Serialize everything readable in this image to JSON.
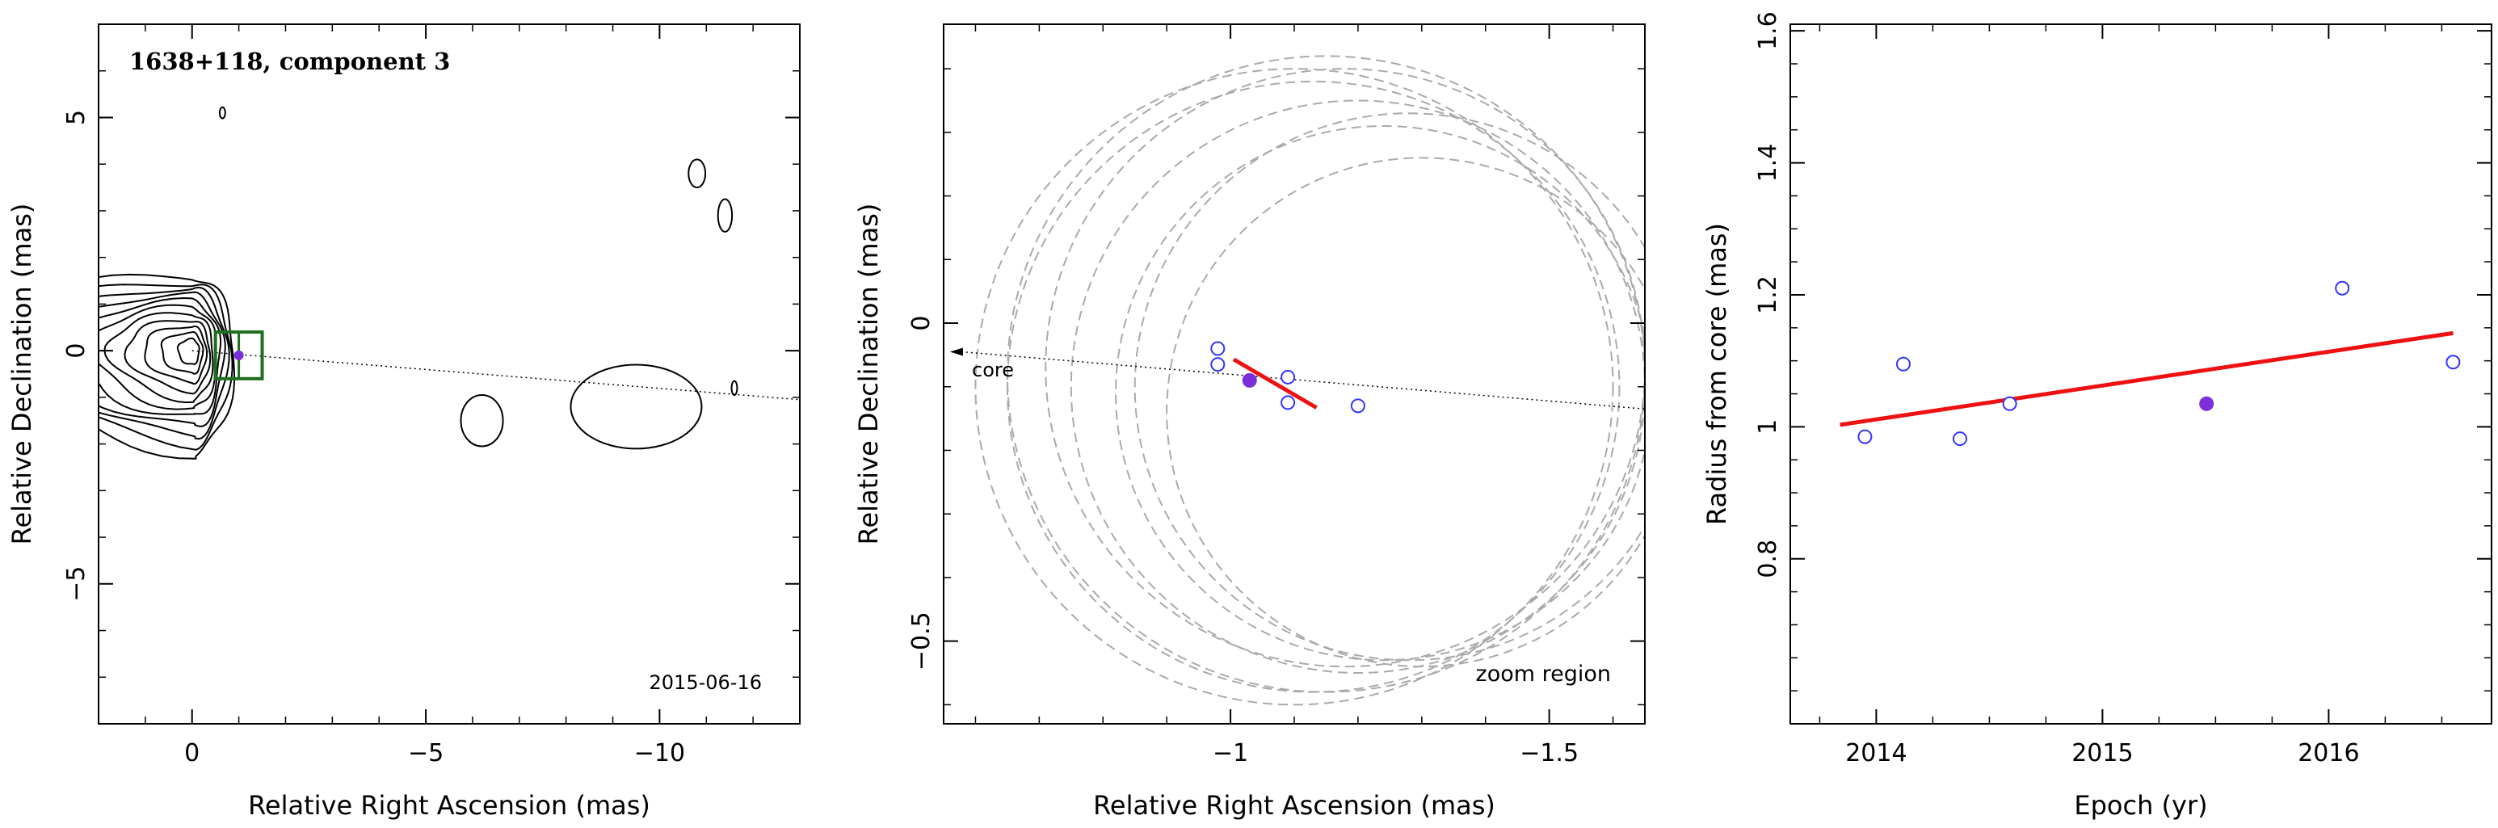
{
  "chart_data": [
    {
      "type": "contour",
      "panel": "vlba-map",
      "annotation_title": "1638+118, component 3",
      "annotation_date": "2015-06-16",
      "xlabel": "Relative Right Ascension (mas)",
      "ylabel": "Relative Declination (mas)",
      "xlim": [
        2,
        -13
      ],
      "ylim": [
        -8,
        7
      ],
      "x_ticks": [
        0,
        -5,
        -10
      ],
      "x_tick_labels": [
        "0",
        "−5",
        "−10"
      ],
      "y_ticks": [
        5,
        0,
        -5
      ],
      "y_tick_labels": [
        "5",
        "0",
        "−5"
      ],
      "component": {
        "x": -1.0,
        "y": -0.1,
        "box_half_size": 0.5
      },
      "jet_axis": {
        "from": [
          0,
          0
        ],
        "to": [
          -13,
          -1.05
        ]
      },
      "contour_levels": 11,
      "colors": {
        "contour": "#000000",
        "box": "#1f6e1f",
        "marker": "#7b2fd8"
      }
    },
    {
      "type": "scatter",
      "panel": "zoom-region",
      "annotation": "zoom region",
      "core_label": "core",
      "xlabel": "Relative Right Ascension (mas)",
      "ylabel": "Relative Declination (mas)",
      "xlim": [
        -0.55,
        -1.65
      ],
      "ylim": [
        -0.63,
        0.47
      ],
      "x_ticks": [
        -1,
        -1.5
      ],
      "x_tick_labels": [
        "−1",
        "−1.5"
      ],
      "y_ticks": [
        0,
        -0.5
      ],
      "y_tick_labels": [
        "0",
        "−0.5"
      ],
      "series": [
        {
          "marker": "open",
          "points": [
            [
              -0.98,
              -0.04
            ],
            [
              -0.98,
              -0.065
            ],
            [
              -1.09,
              -0.085
            ],
            [
              -1.09,
              -0.125
            ],
            [
              -1.2,
              -0.13
            ]
          ]
        },
        {
          "marker": "filled",
          "points": [
            [
              -1.03,
              -0.09
            ]
          ]
        }
      ],
      "fit_line": [
        [
          -1.005,
          -0.057
        ],
        [
          -1.135,
          -0.133
        ]
      ],
      "jet_axis": {
        "from": [
          -0.56,
          -0.045
        ],
        "to": [
          -1.65,
          -0.135
        ]
      },
      "beam_circles": [
        {
          "cx": -1.1,
          "cy": -0.1,
          "r": 0.5
        },
        {
          "cx": -1.13,
          "cy": -0.1,
          "r": 0.48
        },
        {
          "cx": -1.15,
          "cy": -0.08,
          "r": 0.5
        },
        {
          "cx": -1.18,
          "cy": -0.07,
          "r": 0.47
        },
        {
          "cx": -1.2,
          "cy": -0.1,
          "r": 0.45
        },
        {
          "cx": -1.24,
          "cy": -0.11,
          "r": 0.42
        },
        {
          "cx": -1.28,
          "cy": -0.1,
          "r": 0.43
        },
        {
          "cx": -1.3,
          "cy": -0.14,
          "r": 0.4
        }
      ],
      "colors": {
        "points": "#3333ff",
        "filled": "#7b2fd8",
        "fit": "#ee1111",
        "circles": "#aaaaaa"
      }
    },
    {
      "type": "scatter",
      "panel": "radius-vs-epoch",
      "xlabel": "Epoch (yr)",
      "ylabel": "Radius from core (mas)",
      "xlim": [
        2013.62,
        2016.72
      ],
      "ylim": [
        0.55,
        1.61
      ],
      "x_ticks": [
        2014,
        2015,
        2016
      ],
      "x_tick_labels": [
        "2014",
        "2015",
        "2016"
      ],
      "y_ticks": [
        0.8,
        1,
        1.2,
        1.4,
        1.6
      ],
      "y_tick_labels": [
        "0.8",
        "1",
        "1.2",
        "1.4",
        "1.6"
      ],
      "series": [
        {
          "marker": "open",
          "points": [
            [
              2013.95,
              0.985
            ],
            [
              2014.12,
              1.095
            ],
            [
              2014.37,
              0.982
            ],
            [
              2014.59,
              1.035
            ],
            [
              2016.06,
              1.21
            ],
            [
              2016.55,
              1.098
            ]
          ]
        },
        {
          "marker": "filled",
          "points": [
            [
              2015.46,
              1.035
            ]
          ]
        }
      ],
      "fit_line": [
        [
          2013.84,
          1.003
        ],
        [
          2016.55,
          1.142
        ]
      ],
      "colors": {
        "points": "#3333ff",
        "filled": "#7b2fd8",
        "fit": "#ee1111"
      }
    }
  ]
}
